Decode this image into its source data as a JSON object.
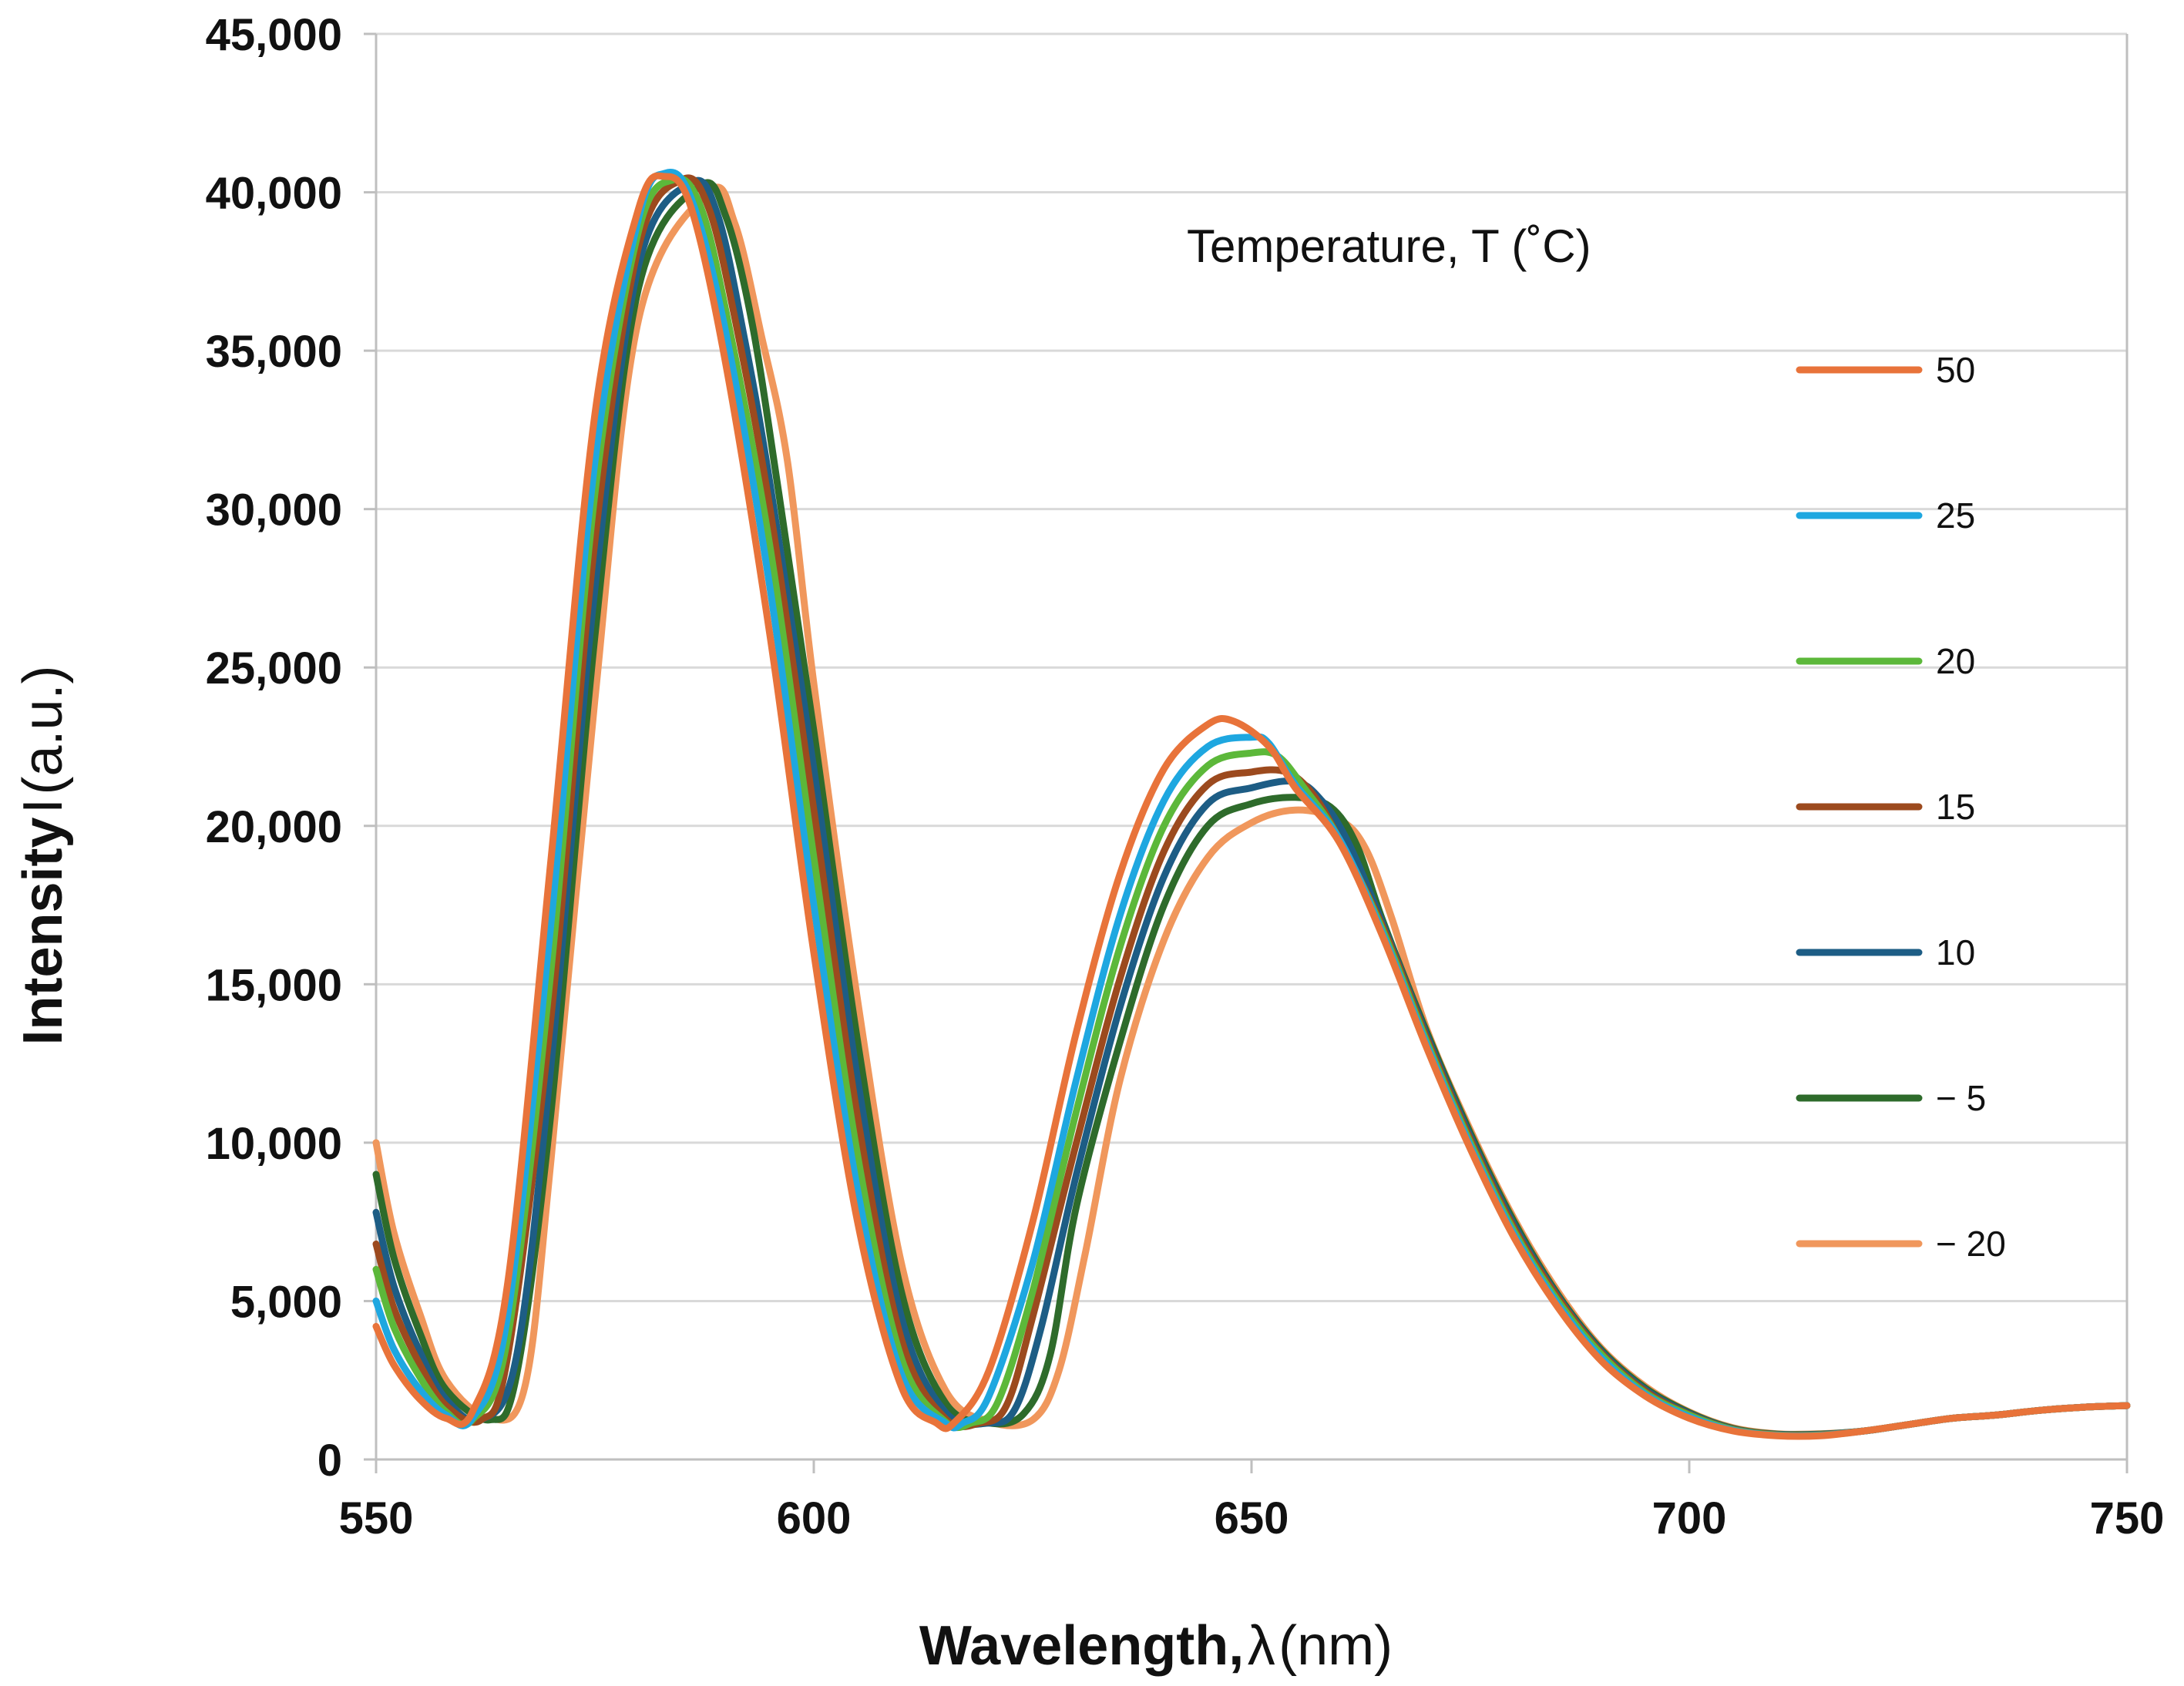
{
  "chart_data": {
    "type": "line",
    "title": "",
    "xlabel": "Wavelength, λ (nm)",
    "xlabel_main": "Wavelength,",
    "xlabel_symbol": "λ",
    "xlabel_unit": "(nm)",
    "ylabel": "Intensity I (a.u.)",
    "ylabel_main": "Intensity",
    "ylabel_symbol": "I",
    "ylabel_unit": "(a.u.)",
    "xlim": [
      550,
      750
    ],
    "ylim": [
      0,
      45000
    ],
    "xticks": [
      550,
      600,
      650,
      700,
      750
    ],
    "yticks": [
      0,
      5000,
      10000,
      15000,
      20000,
      25000,
      30000,
      35000,
      40000,
      45000
    ],
    "xtick_labels": [
      "550",
      "600",
      "650",
      "700",
      "750"
    ],
    "ytick_labels": [
      "0",
      "5,000",
      "10,000",
      "15,000",
      "20,000",
      "25,000",
      "30,000",
      "35,000",
      "40,000",
      "45,000"
    ],
    "grid": "horizontal",
    "legend_title": "Temperature, T (˚C)",
    "legend_position": "right",
    "series": [
      {
        "name": "50",
        "color": "#e8733a",
        "x": [
          550,
          552,
          555,
          558,
          561,
          565,
          570,
          575,
          580,
          583,
          586,
          590,
          595,
          600,
          605,
          610,
          614,
          616,
          620,
          625,
          630,
          635,
          640,
          645,
          648,
          652,
          655,
          660,
          665,
          670,
          675,
          680,
          685,
          690,
          695,
          700,
          705,
          710,
          715,
          720,
          725,
          730,
          735,
          740,
          745,
          750
        ],
        "values": [
          4200,
          3000,
          1900,
          1300,
          1500,
          5500,
          19000,
          33000,
          39500,
          40500,
          39500,
          34500,
          26000,
          16000,
          7500,
          2300,
          1150,
          1150,
          2800,
          7500,
          13500,
          18500,
          21800,
          23200,
          23300,
          22500,
          21200,
          19500,
          16500,
          13000,
          9800,
          7000,
          4800,
          3100,
          2000,
          1300,
          900,
          750,
          750,
          900,
          1100,
          1300,
          1400,
          1550,
          1650,
          1700
        ]
      },
      {
        "name": "25",
        "color": "#1ea7e0",
        "x": [
          550,
          552,
          555,
          558,
          561,
          565,
          570,
          575,
          580,
          583,
          586,
          590,
          595,
          600,
          605,
          610,
          615,
          617,
          620,
          625,
          630,
          635,
          640,
          645,
          650,
          652,
          655,
          660,
          665,
          670,
          675,
          680,
          685,
          690,
          695,
          700,
          705,
          710,
          715,
          720,
          725,
          730,
          735,
          740,
          745,
          750
        ],
        "values": [
          5000,
          3500,
          2200,
          1400,
          1300,
          4500,
          17000,
          31500,
          39200,
          40600,
          39800,
          35500,
          27500,
          17500,
          8500,
          2700,
          1150,
          1150,
          2000,
          6200,
          12000,
          17200,
          20800,
          22500,
          22800,
          22600,
          21300,
          19600,
          16600,
          13100,
          9900,
          7100,
          4900,
          3200,
          2050,
          1350,
          920,
          760,
          760,
          900,
          1100,
          1300,
          1400,
          1550,
          1650,
          1700
        ]
      },
      {
        "name": "20",
        "color": "#5cb83a",
        "x": [
          550,
          552,
          555,
          558,
          561,
          565,
          570,
          575,
          580,
          584,
          587,
          590,
          595,
          600,
          605,
          610,
          615,
          618,
          621,
          625,
          630,
          635,
          640,
          645,
          650,
          653,
          656,
          660,
          665,
          670,
          675,
          680,
          685,
          690,
          695,
          700,
          705,
          710,
          715,
          720,
          725,
          730,
          735,
          740,
          745,
          750
        ],
        "values": [
          6000,
          4200,
          2600,
          1500,
          1250,
          3800,
          15500,
          30500,
          38800,
          40400,
          39600,
          36200,
          28800,
          19000,
          9600,
          3200,
          1200,
          1150,
          1800,
          5300,
          11000,
          16200,
          20000,
          21900,
          22300,
          22200,
          21200,
          19600,
          16700,
          13200,
          10000,
          7200,
          5000,
          3300,
          2100,
          1400,
          940,
          770,
          770,
          900,
          1100,
          1300,
          1400,
          1550,
          1650,
          1700
        ]
      },
      {
        "name": "15",
        "color": "#9c4a1e",
        "x": [
          550,
          552,
          555,
          558,
          562,
          565,
          570,
          575,
          580,
          585,
          588,
          591,
          595,
          600,
          605,
          610,
          615,
          619,
          622,
          625,
          630,
          635,
          640,
          645,
          650,
          654,
          657,
          660,
          665,
          670,
          675,
          680,
          685,
          690,
          695,
          700,
          705,
          710,
          715,
          720,
          725,
          730,
          735,
          740,
          745,
          750
        ],
        "values": [
          6800,
          4800,
          3000,
          1700,
          1250,
          3200,
          14000,
          29000,
          38300,
          40400,
          39500,
          36000,
          30000,
          20500,
          10800,
          3800,
          1300,
          1150,
          1700,
          4500,
          10000,
          15200,
          19200,
          21300,
          21700,
          21700,
          21000,
          19600,
          16800,
          13300,
          10100,
          7300,
          5100,
          3350,
          2150,
          1420,
          950,
          780,
          780,
          900,
          1100,
          1300,
          1400,
          1550,
          1650,
          1700
        ]
      },
      {
        "name": "10",
        "color": "#1d5d85",
        "x": [
          550,
          552,
          555,
          558,
          562,
          566,
          570,
          575,
          580,
          586,
          589,
          592,
          595,
          600,
          605,
          610,
          615,
          620,
          623,
          626,
          630,
          635,
          640,
          645,
          650,
          655,
          658,
          661,
          665,
          670,
          675,
          680,
          685,
          690,
          695,
          700,
          705,
          710,
          715,
          720,
          725,
          730,
          735,
          740,
          745,
          750
        ],
        "values": [
          7800,
          5500,
          3400,
          1900,
          1250,
          3200,
          12500,
          27500,
          37700,
          40300,
          39300,
          35500,
          30800,
          21800,
          12000,
          4500,
          1500,
          1150,
          1600,
          4200,
          9000,
          14300,
          18400,
          20700,
          21200,
          21400,
          20800,
          19500,
          16900,
          13400,
          10200,
          7400,
          5150,
          3400,
          2200,
          1450,
          960,
          790,
          790,
          900,
          1100,
          1300,
          1400,
          1550,
          1650,
          1700
        ]
      },
      {
        "name": "− 5",
        "color": "#2e6b2b",
        "x": [
          550,
          552,
          555,
          558,
          563,
          566,
          570,
          575,
          580,
          587,
          590,
          593,
          596,
          600,
          605,
          610,
          615,
          620,
          624,
          627,
          630,
          635,
          640,
          645,
          650,
          655,
          659,
          662,
          665,
          670,
          675,
          680,
          685,
          690,
          695,
          700,
          705,
          710,
          715,
          720,
          725,
          730,
          735,
          740,
          745,
          750
        ],
        "values": [
          9000,
          6400,
          4000,
          2200,
          1250,
          2600,
          11000,
          26000,
          37000,
          40200,
          39200,
          35800,
          30500,
          23000,
          13200,
          5300,
          1800,
          1150,
          1450,
          3300,
          8000,
          13200,
          17500,
          20000,
          20700,
          20900,
          20600,
          19400,
          17000,
          13500,
          10300,
          7500,
          5200,
          3450,
          2250,
          1480,
          980,
          800,
          800,
          900,
          1100,
          1300,
          1400,
          1550,
          1650,
          1700
        ]
      },
      {
        "name": "− 20",
        "color": "#f0975c",
        "x": [
          550,
          552,
          555,
          558,
          563,
          567,
          570,
          575,
          580,
          588,
          591,
          594,
          597,
          600,
          605,
          610,
          615,
          620,
          625,
          628,
          631,
          635,
          640,
          645,
          650,
          655,
          660,
          663,
          666,
          670,
          675,
          680,
          685,
          690,
          695,
          700,
          705,
          710,
          715,
          720,
          725,
          730,
          735,
          740,
          745,
          750
        ],
        "values": [
          10000,
          7200,
          4600,
          2500,
          1300,
          2300,
          9500,
          24000,
          36000,
          40000,
          39000,
          35500,
          31500,
          24500,
          14500,
          6200,
          2200,
          1200,
          1250,
          2800,
          6500,
          12000,
          16400,
          19000,
          20100,
          20500,
          20200,
          19300,
          17100,
          13600,
          10400,
          7600,
          5300,
          3500,
          2300,
          1500,
          1000,
          810,
          810,
          900,
          1100,
          1300,
          1400,
          1550,
          1650,
          1700
        ]
      }
    ]
  }
}
